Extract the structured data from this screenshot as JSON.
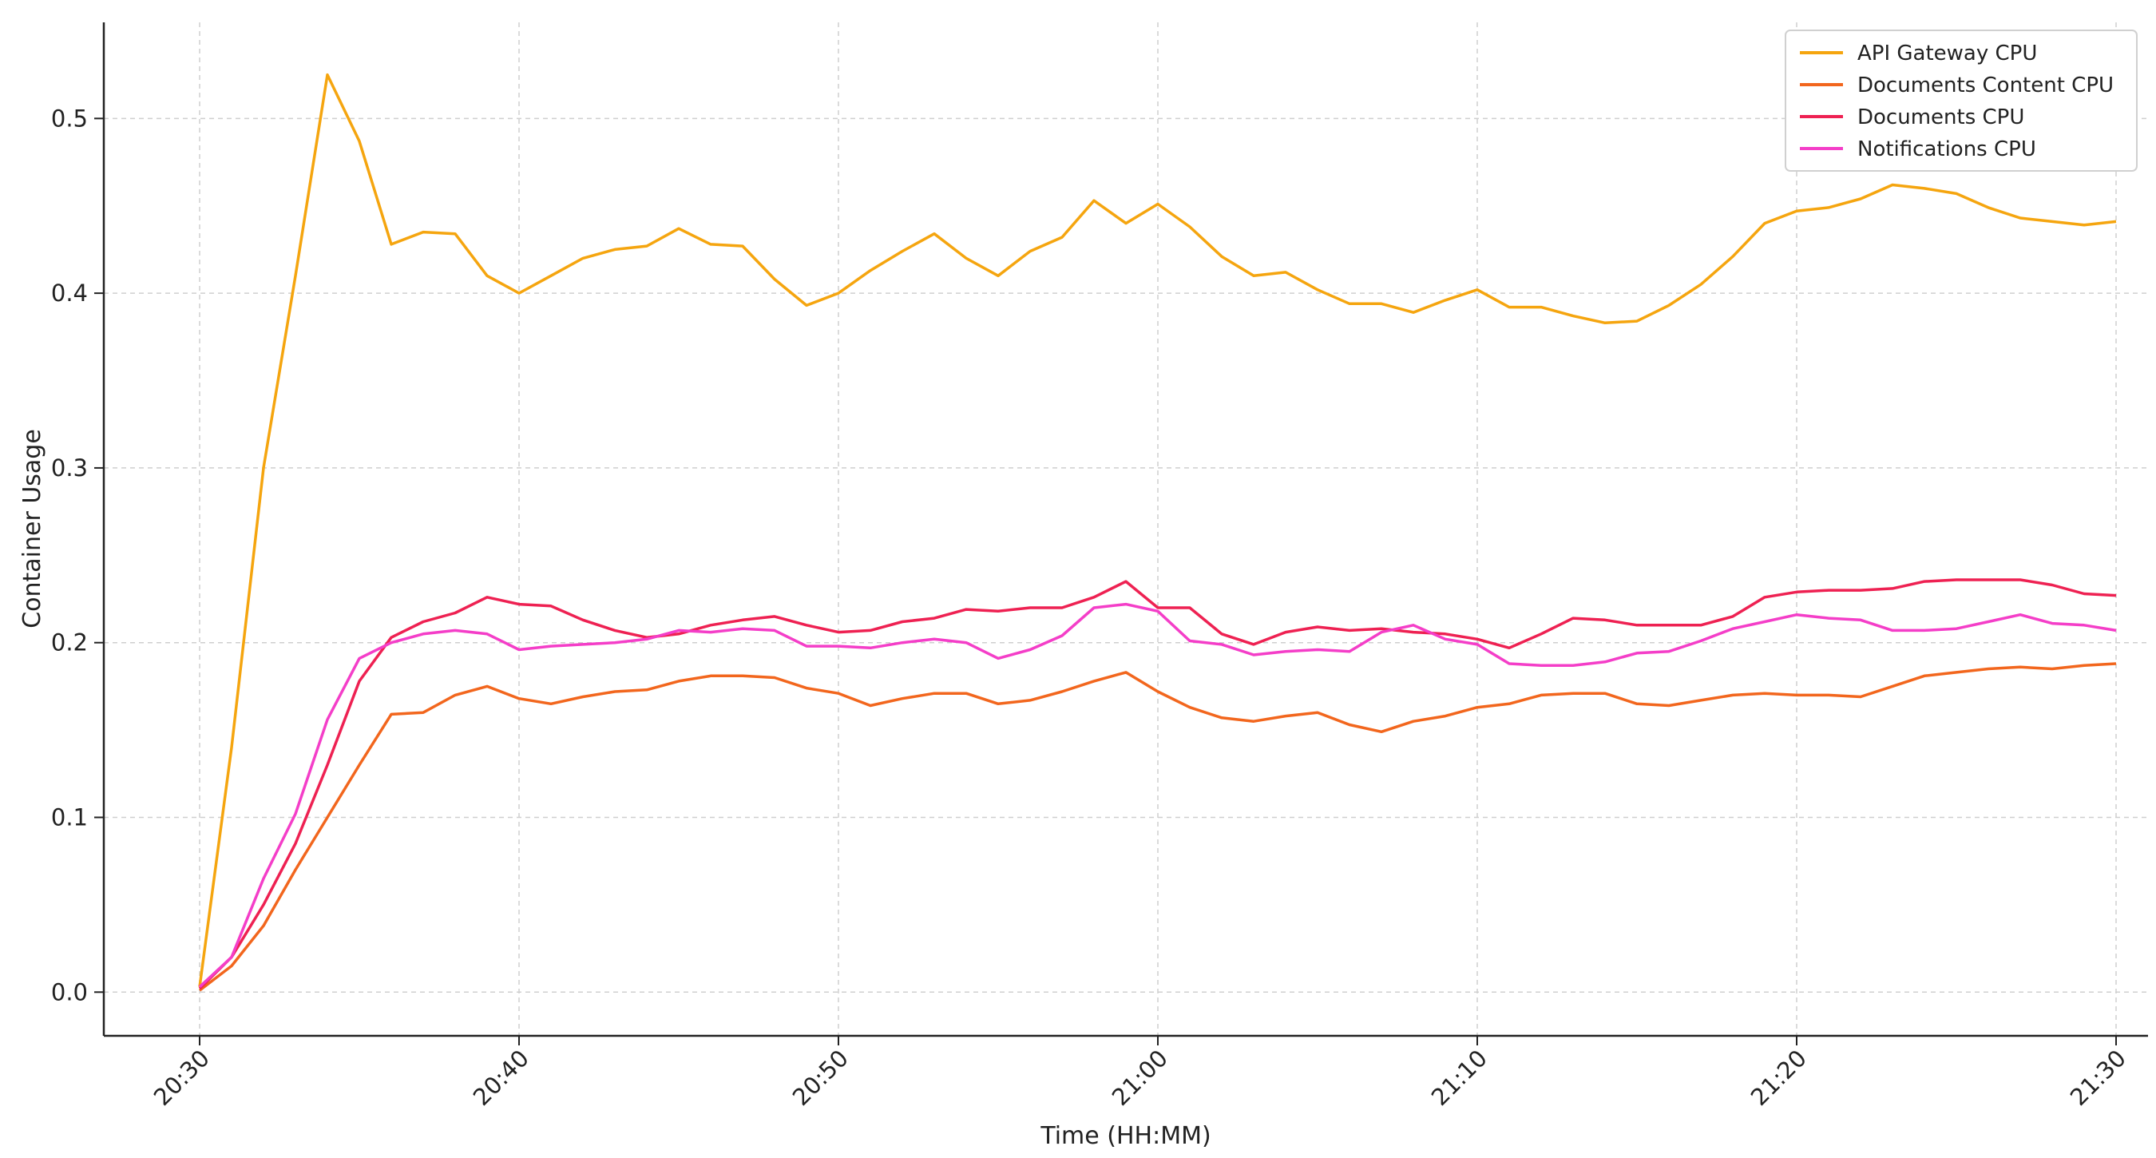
{
  "chart_data": {
    "type": "line",
    "title": "",
    "xlabel": "Time (HH:MM)",
    "ylabel": "Container Usage",
    "x_ticks": [
      "20:30",
      "20:40",
      "20:50",
      "21:00",
      "21:10",
      "21:20",
      "21:30"
    ],
    "x_range_minutes": [
      -3,
      61
    ],
    "y_ticks": [
      "0.0",
      "0.1",
      "0.2",
      "0.3",
      "0.4",
      "0.5"
    ],
    "ylim": [
      -0.025,
      0.555
    ],
    "grid": true,
    "legend_position": "top-right",
    "x_minutes": [
      0,
      1,
      2,
      3,
      4,
      5,
      6,
      7,
      8,
      9,
      10,
      11,
      12,
      13,
      14,
      15,
      16,
      17,
      18,
      19,
      20,
      21,
      22,
      23,
      24,
      25,
      26,
      27,
      28,
      29,
      30,
      31,
      32,
      33,
      34,
      35,
      36,
      37,
      38,
      39,
      40,
      41,
      42,
      43,
      44,
      45,
      46,
      47,
      48,
      49,
      50,
      51,
      52,
      53,
      54,
      55,
      56,
      57,
      58,
      59,
      60
    ],
    "series": [
      {
        "name": "API Gateway CPU",
        "color": "#f5a50f",
        "values": [
          0.003,
          0.14,
          0.3,
          0.41,
          0.525,
          0.487,
          0.428,
          0.435,
          0.434,
          0.41,
          0.4,
          0.41,
          0.42,
          0.425,
          0.427,
          0.437,
          0.428,
          0.427,
          0.408,
          0.393,
          0.4,
          0.413,
          0.424,
          0.434,
          0.42,
          0.41,
          0.424,
          0.432,
          0.453,
          0.44,
          0.451,
          0.438,
          0.421,
          0.41,
          0.412,
          0.402,
          0.394,
          0.394,
          0.389,
          0.396,
          0.402,
          0.392,
          0.392,
          0.387,
          0.383,
          0.384,
          0.393,
          0.405,
          0.421,
          0.44,
          0.447,
          0.449,
          0.454,
          0.462,
          0.46,
          0.457,
          0.449,
          0.443,
          0.441,
          0.439,
          0.441
        ]
      },
      {
        "name": "Documents Content CPU",
        "color": "#f2661d",
        "values": [
          0.001,
          0.015,
          0.038,
          0.07,
          0.1,
          0.13,
          0.159,
          0.16,
          0.17,
          0.175,
          0.168,
          0.165,
          0.169,
          0.172,
          0.173,
          0.178,
          0.181,
          0.181,
          0.18,
          0.174,
          0.171,
          0.164,
          0.168,
          0.171,
          0.171,
          0.165,
          0.167,
          0.172,
          0.178,
          0.183,
          0.172,
          0.163,
          0.157,
          0.155,
          0.158,
          0.16,
          0.153,
          0.149,
          0.155,
          0.158,
          0.163,
          0.165,
          0.17,
          0.171,
          0.171,
          0.165,
          0.164,
          0.167,
          0.17,
          0.171,
          0.17,
          0.17,
          0.169,
          0.175,
          0.181,
          0.183,
          0.185,
          0.186,
          0.185,
          0.187,
          0.188
        ]
      },
      {
        "name": "Documents CPU",
        "color": "#ee2152",
        "values": [
          0.002,
          0.02,
          0.05,
          0.085,
          0.13,
          0.178,
          0.203,
          0.212,
          0.217,
          0.226,
          0.222,
          0.221,
          0.213,
          0.207,
          0.203,
          0.205,
          0.21,
          0.213,
          0.215,
          0.21,
          0.206,
          0.207,
          0.212,
          0.214,
          0.219,
          0.218,
          0.22,
          0.22,
          0.226,
          0.235,
          0.22,
          0.22,
          0.205,
          0.199,
          0.206,
          0.209,
          0.207,
          0.208,
          0.206,
          0.205,
          0.202,
          0.197,
          0.205,
          0.214,
          0.213,
          0.21,
          0.21,
          0.21,
          0.215,
          0.226,
          0.229,
          0.23,
          0.23,
          0.231,
          0.235,
          0.236,
          0.236,
          0.236,
          0.233,
          0.228,
          0.227
        ]
      },
      {
        "name": "Notifications CPU",
        "color": "#f43ec8",
        "values": [
          0.003,
          0.02,
          0.065,
          0.102,
          0.156,
          0.191,
          0.2,
          0.205,
          0.207,
          0.205,
          0.196,
          0.198,
          0.199,
          0.2,
          0.202,
          0.207,
          0.206,
          0.208,
          0.207,
          0.198,
          0.198,
          0.197,
          0.2,
          0.202,
          0.2,
          0.191,
          0.196,
          0.204,
          0.22,
          0.222,
          0.218,
          0.201,
          0.199,
          0.193,
          0.195,
          0.196,
          0.195,
          0.206,
          0.21,
          0.202,
          0.199,
          0.188,
          0.187,
          0.187,
          0.189,
          0.194,
          0.195,
          0.201,
          0.208,
          0.212,
          0.216,
          0.214,
          0.213,
          0.207,
          0.207,
          0.208,
          0.212,
          0.216,
          0.211,
          0.21,
          0.207
        ]
      }
    ]
  }
}
